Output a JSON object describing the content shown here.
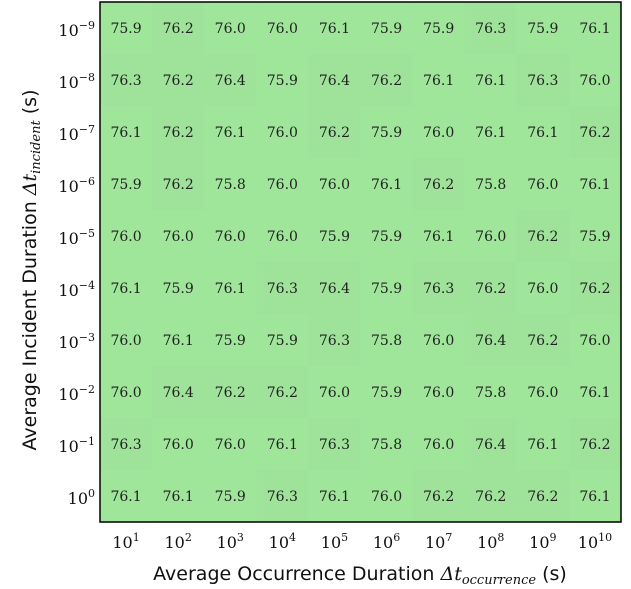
{
  "colors": {
    "cell": "#9fe59a",
    "cell_alt": "#9ee399",
    "frame": "#000000",
    "text": "#222222"
  },
  "chart_data": {
    "type": "heatmap",
    "xlabel": {
      "prefix": "Average Occurrence Duration ",
      "symbol": "Δt",
      "subscript": "occurrence",
      "suffix": " (s)"
    },
    "ylabel": {
      "prefix": "Average Incident Duration ",
      "symbol": "Δt",
      "subscript": "incident",
      "suffix": " (s)"
    },
    "x_tick_base": "10",
    "x_exponents": [
      "1",
      "2",
      "3",
      "4",
      "5",
      "6",
      "7",
      "8",
      "9",
      "10"
    ],
    "y_tick_base": "10",
    "y_exponents": [
      "−9",
      "−8",
      "−7",
      "−6",
      "−5",
      "−4",
      "−3",
      "−2",
      "−1",
      "0"
    ],
    "values": [
      [
        75.9,
        76.2,
        76.0,
        76.0,
        76.1,
        75.9,
        75.9,
        76.3,
        75.9,
        76.1
      ],
      [
        76.3,
        76.2,
        76.4,
        75.9,
        76.4,
        76.2,
        76.1,
        76.1,
        76.3,
        76.0
      ],
      [
        76.1,
        76.2,
        76.1,
        76.0,
        76.2,
        75.9,
        76.0,
        76.1,
        76.1,
        76.2
      ],
      [
        75.9,
        76.2,
        75.8,
        76.0,
        76.0,
        76.1,
        76.2,
        75.8,
        76.0,
        76.1
      ],
      [
        76.0,
        76.0,
        76.0,
        76.0,
        75.9,
        75.9,
        76.1,
        76.0,
        76.2,
        75.9
      ],
      [
        76.1,
        75.9,
        76.1,
        76.3,
        76.4,
        75.9,
        76.3,
        76.2,
        76.0,
        76.2
      ],
      [
        76.0,
        76.1,
        75.9,
        75.9,
        76.3,
        75.8,
        76.0,
        76.4,
        76.2,
        76.0
      ],
      [
        76.0,
        76.4,
        76.2,
        76.2,
        76.0,
        75.9,
        76.0,
        75.8,
        76.0,
        76.1
      ],
      [
        76.3,
        76.0,
        76.0,
        76.1,
        76.3,
        75.8,
        76.0,
        76.4,
        76.1,
        76.2
      ],
      [
        76.1,
        76.1,
        75.9,
        76.3,
        76.1,
        76.0,
        76.2,
        76.2,
        76.2,
        76.1
      ]
    ]
  }
}
